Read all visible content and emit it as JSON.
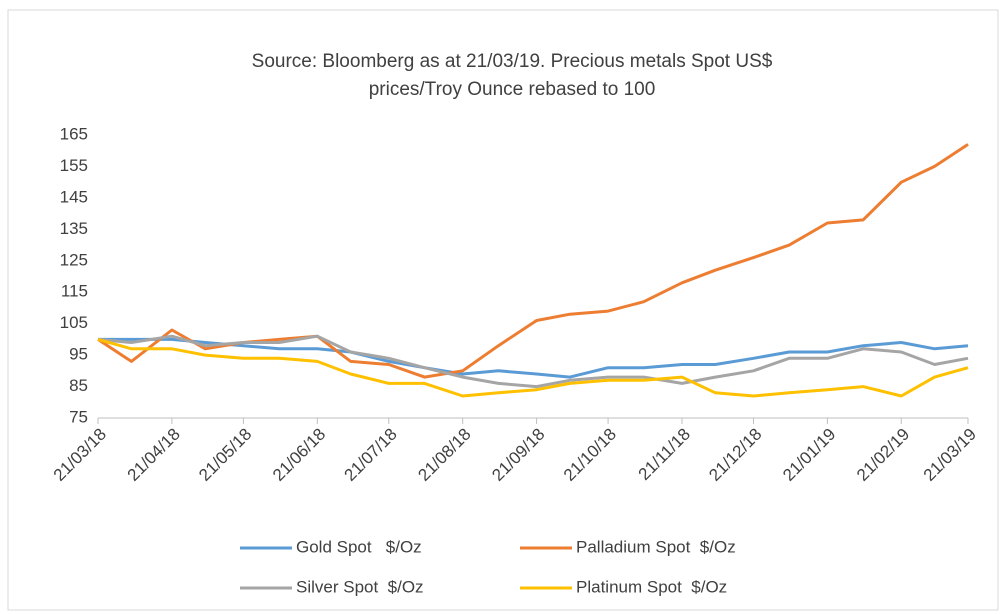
{
  "chart_data": {
    "type": "line",
    "title": [
      "Source: Bloomberg as at 21/03/19.  Precious metals Spot US$",
      "prices/Troy Ounce rebased to 100"
    ],
    "x": [
      "21/03/18",
      "04/04/18",
      "21/04/18",
      "05/05/18",
      "21/05/18",
      "05/06/18",
      "21/06/18",
      "05/07/18",
      "21/07/18",
      "05/08/18",
      "21/08/18",
      "05/09/18",
      "21/09/18",
      "05/10/18",
      "21/10/18",
      "05/11/18",
      "21/11/18",
      "05/12/18",
      "21/12/18",
      "05/01/19",
      "21/01/19",
      "05/02/19",
      "21/02/19",
      "07/03/19",
      "21/03/19"
    ],
    "xlim": [
      "21/03/18",
      "21/03/19"
    ],
    "xticks": [
      "21/03/18",
      "21/04/18",
      "21/05/18",
      "21/06/18",
      "21/07/18",
      "21/08/18",
      "21/09/18",
      "21/10/18",
      "21/11/18",
      "21/12/18",
      "21/01/19",
      "21/02/19",
      "21/03/19"
    ],
    "ylim": [
      75,
      165
    ],
    "yticks": [
      75,
      85,
      95,
      105,
      115,
      125,
      135,
      145,
      155,
      165
    ],
    "series": [
      {
        "name": "Gold Spot   $/Oz",
        "color": "#5b9bd5",
        "values": [
          100,
          100,
          100,
          99,
          98,
          97,
          97,
          96,
          93,
          91,
          89,
          90,
          89,
          88,
          91,
          91,
          92,
          92,
          94,
          96,
          96,
          98,
          99,
          97,
          98
        ]
      },
      {
        "name": "Palladium Spot  $/Oz",
        "color": "#ed7d31",
        "values": [
          100,
          93,
          103,
          97,
          99,
          100,
          101,
          93,
          92,
          88,
          90,
          98,
          106,
          108,
          109,
          112,
          118,
          122,
          126,
          130,
          137,
          138,
          150,
          155,
          162
        ]
      },
      {
        "name": "Silver Spot  $/Oz",
        "color": "#a5a5a5",
        "values": [
          100,
          99,
          101,
          98,
          99,
          99,
          101,
          96,
          94,
          91,
          88,
          86,
          85,
          87,
          88,
          88,
          86,
          88,
          90,
          94,
          94,
          97,
          96,
          92,
          94
        ]
      },
      {
        "name": "Platinum Spot  $/Oz",
        "color": "#ffc000",
        "values": [
          100,
          97,
          97,
          95,
          94,
          94,
          93,
          89,
          86,
          86,
          82,
          83,
          84,
          86,
          87,
          87,
          88,
          83,
          82,
          83,
          84,
          85,
          82,
          88,
          91
        ]
      }
    ]
  }
}
